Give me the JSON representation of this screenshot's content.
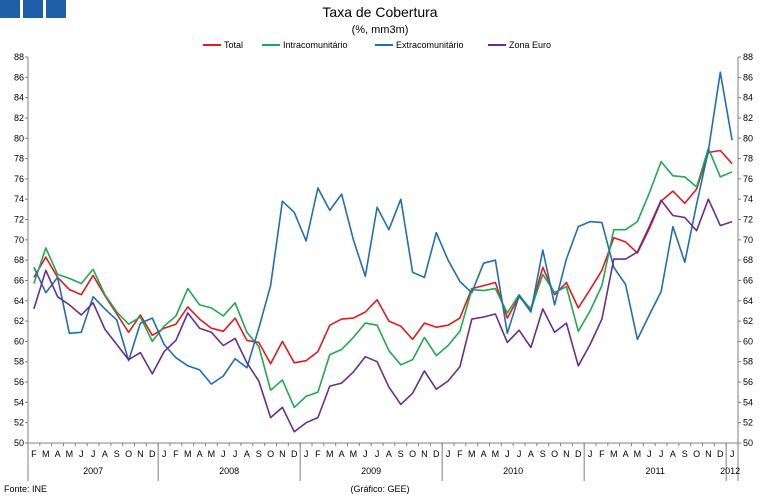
{
  "chart_data": {
    "type": "line",
    "title": "Taxa de Cobertura",
    "subtitle": "(%, mm3m)",
    "ylim": [
      50,
      88
    ],
    "y_ticks": [
      50,
      52,
      54,
      56,
      58,
      60,
      62,
      64,
      66,
      68,
      70,
      72,
      74,
      76,
      78,
      80,
      82,
      84,
      86,
      88
    ],
    "months": [
      "F",
      "M",
      "A",
      "M",
      "J",
      "J",
      "A",
      "S",
      "O",
      "N",
      "D",
      "J",
      "F",
      "M",
      "A",
      "M",
      "J",
      "J",
      "A",
      "S",
      "O",
      "N",
      "D",
      "J",
      "F",
      "M",
      "A",
      "M",
      "J",
      "J",
      "A",
      "S",
      "O",
      "N",
      "D",
      "J",
      "F",
      "M",
      "A",
      "M",
      "J",
      "J",
      "A",
      "S",
      "O",
      "N",
      "D",
      "J",
      "F",
      "M",
      "A",
      "M",
      "J",
      "J",
      "A",
      "S",
      "O",
      "N",
      "D",
      "J"
    ],
    "years": [
      {
        "label": "2007",
        "start": 0,
        "end": 10
      },
      {
        "label": "2008",
        "start": 11,
        "end": 22
      },
      {
        "label": "2009",
        "start": 23,
        "end": 34
      },
      {
        "label": "2010",
        "start": 35,
        "end": 46
      },
      {
        "label": "2011",
        "start": 47,
        "end": 58
      },
      {
        "label": "2012",
        "start": 59,
        "end": 59
      }
    ],
    "legend_position": "top",
    "grid": false,
    "series": [
      {
        "name": "Total",
        "color": "#e31a1c",
        "values": [
          66.3,
          68.3,
          66.3,
          65.1,
          64.6,
          66.5,
          64.5,
          62.7,
          60.9,
          62.6,
          60.6,
          61.3,
          61.7,
          63.4,
          62.2,
          61.3,
          61.0,
          62.3,
          60.1,
          59.9,
          57.8,
          60.0,
          57.9,
          58.1,
          59.0,
          61.6,
          62.2,
          62.3,
          62.9,
          64.1,
          62.0,
          61.5,
          60.2,
          61.8,
          61.4,
          61.6,
          62.3,
          65.2,
          65.5,
          65.8,
          62.3,
          64.4,
          63.2,
          67.3,
          64.6,
          65.8,
          63.3,
          65.1,
          67.0,
          70.2,
          69.8,
          68.7,
          71.1,
          73.8,
          74.8,
          73.6,
          75.0,
          78.6,
          78.8,
          77.5
        ]
      },
      {
        "name": "Intracomunitário",
        "color": "#1faa4f",
        "values": [
          65.7,
          69.2,
          66.6,
          66.2,
          65.7,
          67.1,
          64.6,
          62.9,
          61.7,
          62.4,
          60.0,
          61.5,
          62.5,
          65.2,
          63.6,
          63.3,
          62.5,
          63.8,
          60.9,
          59.5,
          55.2,
          56.2,
          53.5,
          54.6,
          55.0,
          58.7,
          59.2,
          60.4,
          61.8,
          61.6,
          59.1,
          57.7,
          58.2,
          60.4,
          58.6,
          59.6,
          61.0,
          65.1,
          65.0,
          65.2,
          62.8,
          64.6,
          63.1,
          66.6,
          64.8,
          65.4,
          61.0,
          63.0,
          65.5,
          71.0,
          71.0,
          71.8,
          74.6,
          77.7,
          76.3,
          76.2,
          75.2,
          79.0,
          76.2,
          76.7
        ]
      },
      {
        "name": "Extracomunitário",
        "color": "#1f6fb4",
        "values": [
          67.3,
          64.8,
          66.3,
          60.8,
          60.9,
          64.4,
          63.2,
          62.1,
          58.1,
          61.8,
          62.3,
          59.7,
          58.4,
          57.6,
          57.2,
          55.8,
          56.6,
          58.3,
          57.4,
          61.3,
          65.5,
          73.8,
          72.7,
          69.9,
          75.1,
          72.9,
          74.5,
          70.0,
          66.4,
          73.2,
          71.0,
          74.0,
          66.8,
          66.3,
          70.7,
          68.0,
          65.9,
          64.8,
          67.7,
          68.0,
          60.8,
          64.5,
          62.9,
          69.0,
          63.6,
          68.1,
          71.3,
          71.8,
          71.7,
          67.3,
          65.6,
          60.2,
          62.6,
          64.9,
          71.3,
          67.8,
          73.5,
          78.8,
          86.5,
          79.8
        ]
      },
      {
        "name": "Zona Euro",
        "color": "#6a2c91",
        "values": [
          63.2,
          67.0,
          64.4,
          63.6,
          62.6,
          63.8,
          61.2,
          59.7,
          58.2,
          58.9,
          56.8,
          59.0,
          60.1,
          62.8,
          61.3,
          60.9,
          59.6,
          60.3,
          57.9,
          56.1,
          52.5,
          53.5,
          51.1,
          52.0,
          52.5,
          55.6,
          55.9,
          57.0,
          58.5,
          58.0,
          55.5,
          53.8,
          54.9,
          57.1,
          55.3,
          56.1,
          57.5,
          62.2,
          62.4,
          62.7,
          59.9,
          61.1,
          59.4,
          63.2,
          60.9,
          61.8,
          57.6,
          59.7,
          62.2,
          68.1,
          68.1,
          68.8,
          71.3,
          73.9,
          72.4,
          72.2,
          70.9,
          74.0,
          71.4,
          71.8
        ]
      }
    ]
  },
  "footer": {
    "source": "Fonte: INE",
    "credit": "(Gráfico: GEE)"
  },
  "colors": {
    "logo": "#1f5fa8",
    "axis": "#808080"
  }
}
